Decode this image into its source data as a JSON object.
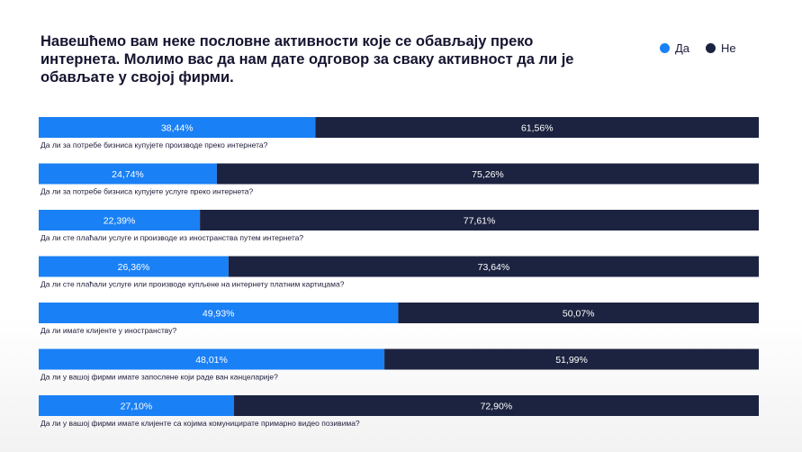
{
  "chart_data": {
    "type": "bar",
    "orientation": "horizontal",
    "stacked": true,
    "title": "Навешћемо вам неке пословне активности које се обављају преко интернета. Молимо вас да нам дате одговор за сваку активност да ли је обављате у својој фирми.",
    "xlabel": "",
    "ylabel": "",
    "xlim": [
      0,
      100
    ],
    "legend_position": "top-right",
    "categories": [
      "Да ли за потребе бизниса купујете производе преко интернета?",
      "Да ли за потребе бизниса купујете услуге преко интернета?",
      "Да ли сте плаћали услуге и производе из иностранства путем интернета?",
      "Да ли сте плаћали услуге или производе купљене на интернету платним картицама?",
      "Да ли имате клијенте у иностранству?",
      "Да ли у вашој фирми имате запослене који раде ван канцеларије?",
      "Да ли у вашој фирми имате клијенте са којима комуницирате примарно видео позивима?"
    ],
    "series": [
      {
        "name": "Да",
        "color": "#1a80f5",
        "values": [
          38.44,
          24.74,
          22.39,
          26.36,
          49.93,
          48.01,
          27.1
        ],
        "labels": [
          "38,44%",
          "24,74%",
          "22,39%",
          "26,36%",
          "49,93%",
          "48,01%",
          "27,10%"
        ]
      },
      {
        "name": "Не",
        "color": "#1c2340",
        "values": [
          61.56,
          75.26,
          77.61,
          73.64,
          50.07,
          51.99,
          72.9
        ],
        "labels": [
          "61,56%",
          "75,26%",
          "77,61%",
          "73,64%",
          "50,07%",
          "51,99%",
          "72,90%"
        ]
      }
    ]
  }
}
